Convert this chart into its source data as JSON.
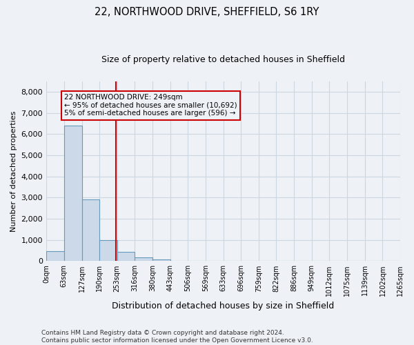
{
  "title_line1": "22, NORTHWOOD DRIVE, SHEFFIELD, S6 1RY",
  "title_line2": "Size of property relative to detached houses in Sheffield",
  "xlabel": "Distribution of detached houses by size in Sheffield",
  "ylabel": "Number of detached properties",
  "footnote": "Contains HM Land Registry data © Crown copyright and database right 2024.\nContains public sector information licensed under the Open Government Licence v3.0.",
  "bar_edges": [
    0,
    63,
    127,
    190,
    253,
    316,
    380,
    443,
    506,
    569,
    633,
    696,
    759,
    822,
    886,
    949,
    1012,
    1075,
    1139,
    1202,
    1265
  ],
  "bar_heights": [
    480,
    6400,
    2900,
    980,
    420,
    160,
    90,
    0,
    0,
    0,
    0,
    0,
    0,
    0,
    0,
    0,
    0,
    0,
    0,
    0
  ],
  "bar_color": "#ccd9e8",
  "bar_edge_color": "#6699bb",
  "vline_x": 249,
  "vline_color": "#cc0000",
  "annotation_text": "22 NORTHWOOD DRIVE: 249sqm\n← 95% of detached houses are smaller (10,692)\n5% of semi-detached houses are larger (596) →",
  "annotation_box_color": "#cc0000",
  "annotation_text_color": "#000000",
  "ylim": [
    0,
    8500
  ],
  "yticks": [
    0,
    1000,
    2000,
    3000,
    4000,
    5000,
    6000,
    7000,
    8000
  ],
  "grid_color": "#ccd6e0",
  "background_color": "#eef2f7",
  "title1_fontsize": 10.5,
  "title2_fontsize": 9,
  "ylabel_fontsize": 8,
  "xlabel_fontsize": 9,
  "footnote_fontsize": 6.5,
  "annot_fontsize": 7.5
}
